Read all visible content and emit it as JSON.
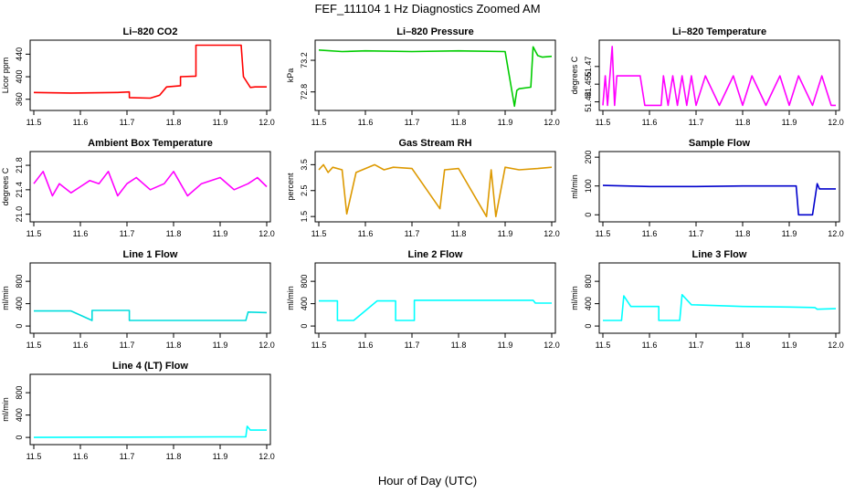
{
  "figure": {
    "title": "FEF_111104  1 Hz Diagnostics Zoomed AM",
    "xlabel": "Hour of Day (UTC)"
  },
  "chart_data": [
    {
      "id": "co2",
      "type": "line",
      "title": "Li–820 CO2",
      "ylabel": "Licor ppm",
      "color": "#ff0000",
      "xlim": [
        11.5,
        12.0
      ],
      "ylim": [
        345,
        460
      ],
      "xticks": [
        11.5,
        11.6,
        11.7,
        11.8,
        11.9,
        12.0
      ],
      "xtick_labels": [
        "11.5",
        "11.6",
        "11.7",
        "11.8",
        "11.9",
        "12.0"
      ],
      "yticks": [
        360,
        400,
        440
      ],
      "ytick_labels": [
        "360",
        "400",
        "440"
      ],
      "series": [
        {
          "name": "CO2",
          "x": [
            11.5,
            11.58,
            11.68,
            11.705,
            11.705,
            11.75,
            11.75,
            11.77,
            11.785,
            11.785,
            11.815,
            11.815,
            11.848,
            11.848,
            11.945,
            11.95,
            11.965,
            11.975,
            12.0
          ],
          "values": [
            372,
            371,
            372,
            373,
            363,
            362,
            362,
            367,
            382,
            382,
            384,
            400,
            401,
            456,
            456,
            400,
            381,
            382,
            382
          ]
        }
      ]
    },
    {
      "id": "pressure",
      "type": "line",
      "title": "Li–820 Pressure",
      "ylabel": "kPa",
      "color": "#00cc00",
      "xlim": [
        11.5,
        12.0
      ],
      "ylim": [
        72.6,
        73.42
      ],
      "xticks": [
        11.5,
        11.6,
        11.7,
        11.8,
        11.9,
        12.0
      ],
      "xtick_labels": [
        "11.5",
        "11.6",
        "11.7",
        "11.8",
        "11.9",
        "12.0"
      ],
      "yticks": [
        72.8,
        73.2
      ],
      "ytick_labels": [
        "72.8",
        "73.2"
      ],
      "series": [
        {
          "name": "Pressure",
          "x": [
            11.5,
            11.55,
            11.6,
            11.7,
            11.8,
            11.9,
            11.92,
            11.925,
            11.93,
            11.93,
            11.955,
            11.96,
            11.97,
            11.98,
            12.0
          ],
          "values": [
            73.33,
            73.31,
            73.32,
            73.31,
            73.32,
            73.31,
            72.62,
            72.82,
            72.84,
            72.84,
            72.86,
            73.37,
            73.26,
            73.24,
            73.25
          ]
        }
      ]
    },
    {
      "id": "li_temp",
      "type": "line",
      "title": "Li–820 Temperature",
      "ylabel": "degrees C",
      "color": "#ff00ff",
      "xlim": [
        11.5,
        12.0
      ],
      "ylim": [
        51.435,
        51.49
      ],
      "xticks": [
        11.5,
        11.6,
        11.7,
        11.8,
        11.9,
        12.0
      ],
      "xtick_labels": [
        "11.5",
        "11.6",
        "11.7",
        "11.8",
        "11.9",
        "12.0"
      ],
      "yticks": [
        51.44,
        51.455,
        51.47
      ],
      "ytick_labels": [
        "51.44",
        "51.455",
        "51.47"
      ],
      "series": [
        {
          "name": "Temperature",
          "x": [
            11.5,
            11.505,
            11.51,
            11.515,
            11.52,
            11.525,
            11.53,
            11.54,
            11.58,
            11.59,
            11.6,
            11.61,
            11.625,
            11.63,
            11.64,
            11.65,
            11.66,
            11.67,
            11.68,
            11.69,
            11.7,
            11.72,
            11.75,
            11.78,
            11.8,
            11.82,
            11.85,
            11.88,
            11.9,
            11.92,
            11.95,
            11.97,
            11.99,
            12.0
          ],
          "values": [
            51.437,
            51.462,
            51.437,
            51.462,
            51.487,
            51.437,
            51.462,
            51.462,
            51.462,
            51.437,
            51.437,
            51.437,
            51.437,
            51.462,
            51.437,
            51.462,
            51.437,
            51.462,
            51.437,
            51.462,
            51.437,
            51.462,
            51.437,
            51.462,
            51.437,
            51.462,
            51.437,
            51.462,
            51.437,
            51.462,
            51.437,
            51.462,
            51.437,
            51.437
          ]
        }
      ]
    },
    {
      "id": "ambient",
      "type": "line",
      "title": "Ambient Box Temperature",
      "ylabel": "degrees C",
      "color": "#ff00ff",
      "xlim": [
        11.5,
        12.0
      ],
      "ylim": [
        20.92,
        21.98
      ],
      "xticks": [
        11.5,
        11.6,
        11.7,
        11.8,
        11.9,
        12.0
      ],
      "xtick_labels": [
        "11.5",
        "11.6",
        "11.7",
        "11.8",
        "11.9",
        "12.0"
      ],
      "yticks": [
        21.0,
        21.4,
        21.8
      ],
      "ytick_labels": [
        "21.0",
        "21.4",
        "21.8"
      ],
      "series": [
        {
          "name": "Ambient",
          "x": [
            11.5,
            11.52,
            11.54,
            11.555,
            11.58,
            11.6,
            11.62,
            11.64,
            11.66,
            11.68,
            11.7,
            11.72,
            11.75,
            11.78,
            11.8,
            11.83,
            11.86,
            11.9,
            11.93,
            11.96,
            11.98,
            12.0
          ],
          "values": [
            21.5,
            21.7,
            21.3,
            21.5,
            21.35,
            21.45,
            21.55,
            21.5,
            21.7,
            21.3,
            21.5,
            21.6,
            21.4,
            21.5,
            21.7,
            21.3,
            21.5,
            21.6,
            21.4,
            21.5,
            21.6,
            21.45
          ]
        }
      ]
    },
    {
      "id": "rh",
      "type": "line",
      "title": "Gas Stream RH",
      "ylabel": "percent",
      "color": "#dd9900",
      "xlim": [
        11.5,
        12.0
      ],
      "ylim": [
        1.4,
        3.9
      ],
      "xticks": [
        11.5,
        11.6,
        11.7,
        11.8,
        11.9,
        12.0
      ],
      "xtick_labels": [
        "11.5",
        "11.6",
        "11.7",
        "11.8",
        "11.9",
        "12.0"
      ],
      "yticks": [
        1.5,
        2.5,
        3.5
      ],
      "ytick_labels": [
        "1.5",
        "2.5",
        "3.5"
      ],
      "series": [
        {
          "name": "RH",
          "x": [
            11.5,
            11.51,
            11.52,
            11.53,
            11.55,
            11.56,
            11.58,
            11.62,
            11.64,
            11.66,
            11.7,
            11.76,
            11.77,
            11.8,
            11.86,
            11.87,
            11.88,
            11.9,
            11.93,
            11.97,
            12.0
          ],
          "values": [
            3.3,
            3.5,
            3.2,
            3.4,
            3.3,
            1.6,
            3.2,
            3.5,
            3.3,
            3.4,
            3.35,
            1.8,
            3.3,
            3.35,
            1.5,
            3.3,
            1.5,
            3.4,
            3.3,
            3.35,
            3.4
          ]
        }
      ]
    },
    {
      "id": "sample_flow",
      "type": "line",
      "title": "Sample Flow",
      "ylabel": "ml/min",
      "color": "#0000cc",
      "xlim": [
        11.5,
        12.0
      ],
      "ylim": [
        -15,
        210
      ],
      "xticks": [
        11.5,
        11.6,
        11.7,
        11.8,
        11.9,
        12.0
      ],
      "xtick_labels": [
        "11.5",
        "11.6",
        "11.7",
        "11.8",
        "11.9",
        "12.0"
      ],
      "yticks": [
        0,
        100,
        200
      ],
      "ytick_labels": [
        "0",
        "100",
        "200"
      ],
      "series": [
        {
          "name": "Sample",
          "x": [
            11.5,
            11.6,
            11.7,
            11.8,
            11.9,
            11.915,
            11.92,
            11.95,
            11.96,
            11.965,
            12.0
          ],
          "values": [
            102,
            98,
            98,
            100,
            100,
            100,
            0,
            0,
            108,
            90,
            90
          ]
        }
      ]
    },
    {
      "id": "line1",
      "type": "line",
      "title": "Line 1 Flow",
      "ylabel": "ml/min",
      "color": "#00dddd",
      "xlim": [
        11.5,
        12.0
      ],
      "ylim": [
        -80,
        1080
      ],
      "xticks": [
        11.5,
        11.6,
        11.7,
        11.8,
        11.9,
        12.0
      ],
      "xtick_labels": [
        "11.5",
        "11.6",
        "11.7",
        "11.8",
        "11.9",
        "12.0"
      ],
      "yticks": [
        0,
        400,
        800
      ],
      "ytick_labels": [
        "0",
        "400",
        "800"
      ],
      "series": [
        {
          "name": "Line1",
          "x": [
            11.5,
            11.58,
            11.625,
            11.625,
            11.705,
            11.705,
            11.8,
            11.955,
            11.96,
            12.0
          ],
          "values": [
            270,
            270,
            100,
            280,
            280,
            100,
            100,
            100,
            250,
            240
          ]
        }
      ]
    },
    {
      "id": "line2",
      "type": "line",
      "title": "Line 2 Flow",
      "ylabel": "ml/min",
      "color": "#00ffff",
      "xlim": [
        11.5,
        12.0
      ],
      "ylim": [
        -80,
        1080
      ],
      "xticks": [
        11.5,
        11.6,
        11.7,
        11.8,
        11.9,
        12.0
      ],
      "xtick_labels": [
        "11.5",
        "11.6",
        "11.7",
        "11.8",
        "11.9",
        "12.0"
      ],
      "yticks": [
        0,
        400,
        800
      ],
      "ytick_labels": [
        "0",
        "400",
        "800"
      ],
      "series": [
        {
          "name": "Line2",
          "x": [
            11.5,
            11.54,
            11.54,
            11.575,
            11.625,
            11.665,
            11.665,
            11.705,
            11.705,
            11.8,
            11.96,
            11.965,
            12.0
          ],
          "values": [
            450,
            450,
            100,
            100,
            450,
            450,
            100,
            100,
            460,
            460,
            460,
            410,
            410
          ]
        }
      ]
    },
    {
      "id": "line3",
      "type": "line",
      "title": "Line 3 Flow",
      "ylabel": "ml/min",
      "color": "#00ffff",
      "xlim": [
        11.5,
        12.0
      ],
      "ylim": [
        -80,
        1080
      ],
      "xticks": [
        11.5,
        11.6,
        11.7,
        11.8,
        11.9,
        12.0
      ],
      "xtick_labels": [
        "11.5",
        "11.6",
        "11.7",
        "11.8",
        "11.9",
        "12.0"
      ],
      "yticks": [
        0,
        400,
        800
      ],
      "ytick_labels": [
        "0",
        "400",
        "800"
      ],
      "series": [
        {
          "name": "Line3",
          "x": [
            11.5,
            11.54,
            11.545,
            11.56,
            11.62,
            11.62,
            11.665,
            11.67,
            11.69,
            11.8,
            11.9,
            11.955,
            11.96,
            12.0
          ],
          "values": [
            100,
            100,
            540,
            350,
            350,
            100,
            100,
            560,
            380,
            350,
            340,
            330,
            300,
            310
          ]
        }
      ]
    },
    {
      "id": "line4",
      "type": "line",
      "title": "Line 4 (LT) Flow",
      "ylabel": "ml/min",
      "color": "#00ffff",
      "xlim": [
        11.5,
        12.0
      ],
      "ylim": [
        -80,
        1080
      ],
      "xticks": [
        11.5,
        11.6,
        11.7,
        11.8,
        11.9,
        12.0
      ],
      "xtick_labels": [
        "11.5",
        "11.6",
        "11.7",
        "11.8",
        "11.9",
        "12.0"
      ],
      "yticks": [
        0,
        400,
        800
      ],
      "ytick_labels": [
        "0",
        "400",
        "800"
      ],
      "series": [
        {
          "name": "Line4",
          "x": [
            11.5,
            11.7,
            11.9,
            11.955,
            11.958,
            11.965,
            12.0
          ],
          "values": [
            0,
            5,
            10,
            10,
            200,
            130,
            130
          ]
        }
      ]
    }
  ]
}
